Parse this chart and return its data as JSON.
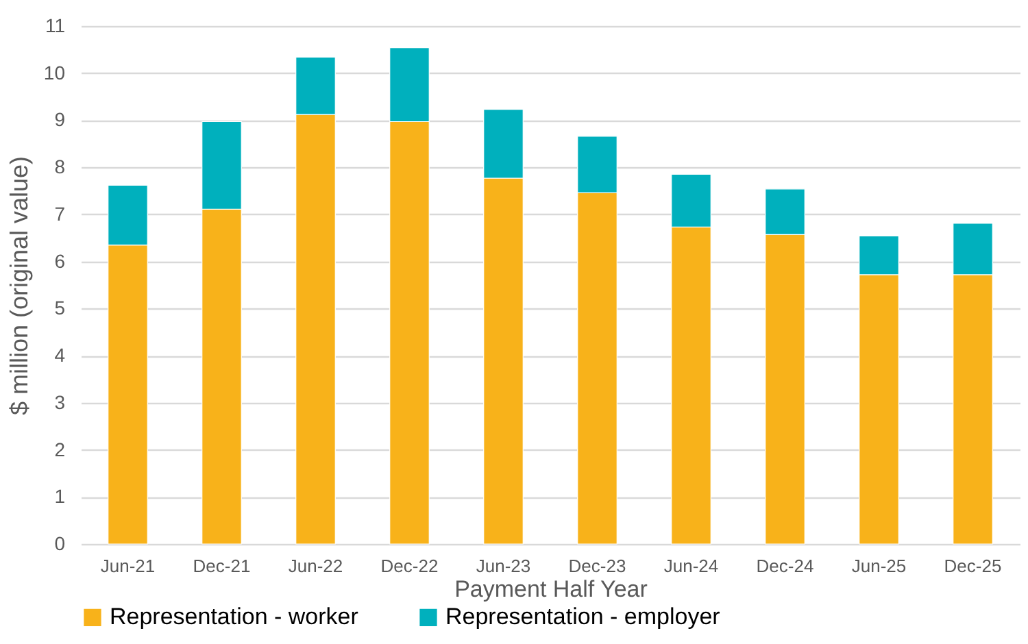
{
  "chart_data": {
    "type": "bar",
    "stacked": true,
    "xlabel": "Payment Half Year",
    "ylabel": "$ million (original value)",
    "categories": [
      "Jun-21",
      "Dec-21",
      "Jun-22",
      "Dec-22",
      "Jun-23",
      "Dec-23",
      "Jun-24",
      "Dec-24",
      "Jun-25",
      "Dec-25"
    ],
    "series": [
      {
        "name": "Representation - worker",
        "color": "#f8b21a",
        "values": [
          6.35,
          7.11,
          9.12,
          8.97,
          7.77,
          7.46,
          6.73,
          6.57,
          5.72,
          5.72
        ]
      },
      {
        "name": "Representation - employer",
        "color": "#00b0bd",
        "values": [
          1.27,
          1.86,
          1.22,
          1.57,
          1.46,
          1.2,
          1.12,
          0.97,
          0.82,
          1.09
        ]
      }
    ],
    "ylim": [
      0,
      11
    ],
    "yticks": [
      0,
      1,
      2,
      3,
      4,
      5,
      6,
      7,
      8,
      9,
      10,
      11
    ],
    "grid": "y",
    "legend": "bottom"
  }
}
